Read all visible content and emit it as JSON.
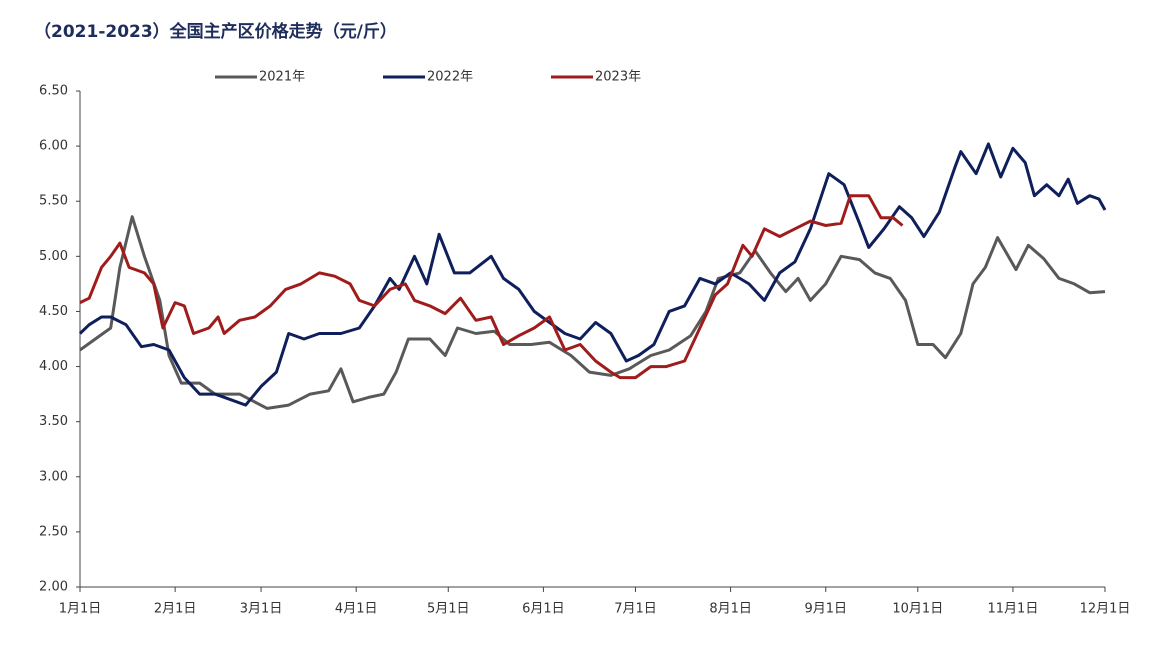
{
  "chart_data": {
    "type": "line",
    "title": "（2021-2023）全国主产区价格走势（元/斤）",
    "xlim": [
      0,
      334
    ],
    "xticks": [
      {
        "value": 0,
        "label": "1月1日"
      },
      {
        "value": 31,
        "label": "2月1日"
      },
      {
        "value": 59,
        "label": "3月1日"
      },
      {
        "value": 90,
        "label": "4月1日"
      },
      {
        "value": 120,
        "label": "5月1日"
      },
      {
        "value": 151,
        "label": "6月1日"
      },
      {
        "value": 181,
        "label": "7月1日"
      },
      {
        "value": 212,
        "label": "8月1日"
      },
      {
        "value": 243,
        "label": "9月1日"
      },
      {
        "value": 273,
        "label": "10月1日"
      },
      {
        "value": 304,
        "label": "11月1日"
      },
      {
        "value": 334,
        "label": "12月1日"
      }
    ],
    "ylim": [
      2,
      6.5
    ],
    "yticks": [
      {
        "value": 2,
        "label": "2.00"
      },
      {
        "value": 2.5,
        "label": "2.50"
      },
      {
        "value": 3,
        "label": "3.00"
      },
      {
        "value": 3.5,
        "label": "3.50"
      },
      {
        "value": 4,
        "label": "4.00"
      },
      {
        "value": 4.5,
        "label": "4.50"
      },
      {
        "value": 5,
        "label": "5.00"
      },
      {
        "value": 5.5,
        "label": "5.50"
      },
      {
        "value": 6,
        "label": "6.00"
      },
      {
        "value": 6.5,
        "label": "6.50"
      }
    ],
    "grid": false,
    "legend": "top",
    "series": [
      {
        "name": "2021年",
        "color": "#595959",
        "x": [
          0,
          5,
          10,
          13,
          17,
          21,
          26,
          29,
          33,
          39,
          44,
          52,
          61,
          68,
          75,
          81,
          85,
          89,
          94,
          99,
          103,
          107,
          114,
          119,
          123,
          129,
          135,
          140,
          147,
          153,
          160,
          166,
          173,
          179,
          186,
          192,
          199,
          204,
          208,
          215,
          220,
          225,
          230,
          234,
          238,
          243,
          248,
          254,
          259,
          264,
          269,
          273,
          278,
          282,
          287,
          291,
          295,
          299,
          305,
          309,
          314,
          319,
          324,
          329,
          334
        ],
        "values": [
          4.15,
          4.25,
          4.35,
          4.9,
          5.36,
          5.0,
          4.6,
          4.1,
          3.85,
          3.85,
          3.75,
          3.75,
          3.62,
          3.65,
          3.75,
          3.78,
          3.98,
          3.68,
          3.72,
          3.75,
          3.95,
          4.25,
          4.25,
          4.1,
          4.35,
          4.3,
          4.32,
          4.2,
          4.2,
          4.22,
          4.1,
          3.95,
          3.92,
          3.98,
          4.1,
          4.15,
          4.28,
          4.5,
          4.8,
          4.85,
          5.05,
          4.85,
          4.68,
          4.8,
          4.6,
          4.75,
          5.0,
          4.97,
          4.85,
          4.8,
          4.6,
          4.2,
          4.2,
          4.08,
          4.3,
          4.75,
          4.9,
          5.17,
          4.88,
          5.1,
          4.98,
          4.8,
          4.75,
          4.67,
          4.68
        ]
      },
      {
        "name": "2022年",
        "color": "#0f1f5c",
        "x": [
          0,
          3,
          7,
          10,
          15,
          20,
          24,
          29,
          34,
          39,
          44,
          49,
          54,
          59,
          64,
          68,
          73,
          78,
          85,
          91,
          96,
          101,
          104,
          109,
          113,
          117,
          122,
          127,
          134,
          138,
          143,
          148,
          153,
          158,
          163,
          168,
          173,
          178,
          182,
          187,
          192,
          197,
          202,
          207,
          212,
          218,
          223,
          228,
          233,
          238,
          244,
          249,
          254,
          257,
          262,
          267,
          271,
          275,
          280,
          285,
          287,
          292,
          296,
          300,
          304,
          308,
          311,
          315,
          319,
          322,
          325,
          329,
          332,
          334
        ],
        "values": [
          4.3,
          4.38,
          4.45,
          4.45,
          4.38,
          4.18,
          4.2,
          4.15,
          3.9,
          3.75,
          3.75,
          3.7,
          3.65,
          3.82,
          3.95,
          4.3,
          4.25,
          4.3,
          4.3,
          4.35,
          4.55,
          4.8,
          4.7,
          5.0,
          4.75,
          5.2,
          4.85,
          4.85,
          5.0,
          4.8,
          4.7,
          4.5,
          4.4,
          4.3,
          4.25,
          4.4,
          4.3,
          4.05,
          4.1,
          4.2,
          4.5,
          4.55,
          4.8,
          4.75,
          4.85,
          4.75,
          4.6,
          4.85,
          4.95,
          5.25,
          5.75,
          5.65,
          5.3,
          5.08,
          5.25,
          5.45,
          5.35,
          5.18,
          5.4,
          5.8,
          5.95,
          5.75,
          6.02,
          5.72,
          5.98,
          5.85,
          5.55,
          5.65,
          5.55,
          5.7,
          5.48,
          5.55,
          5.52,
          5.42
        ]
      },
      {
        "name": "2023年",
        "color": "#a01c1c",
        "x": [
          0,
          3,
          7,
          10,
          13,
          16,
          21,
          24,
          27,
          31,
          34,
          37,
          42,
          45,
          47,
          52,
          57,
          62,
          67,
          72,
          78,
          83,
          88,
          91,
          96,
          101,
          106,
          109,
          114,
          119,
          124,
          129,
          134,
          138,
          143,
          148,
          153,
          158,
          163,
          168,
          173,
          176,
          181,
          186,
          191,
          197,
          202,
          207,
          211,
          216,
          219,
          223,
          228,
          233,
          238,
          243,
          248,
          251,
          257,
          261,
          265,
          268
        ],
        "values": [
          4.58,
          4.62,
          4.9,
          5.0,
          5.12,
          4.9,
          4.85,
          4.75,
          4.35,
          4.58,
          4.55,
          4.3,
          4.35,
          4.45,
          4.3,
          4.42,
          4.45,
          4.55,
          4.7,
          4.75,
          4.85,
          4.82,
          4.75,
          4.6,
          4.55,
          4.7,
          4.75,
          4.6,
          4.55,
          4.48,
          4.62,
          4.42,
          4.45,
          4.2,
          4.28,
          4.35,
          4.45,
          4.15,
          4.2,
          4.05,
          3.95,
          3.9,
          3.9,
          4.0,
          4.0,
          4.05,
          4.35,
          4.65,
          4.75,
          5.1,
          5.0,
          5.25,
          5.18,
          5.25,
          5.32,
          5.28,
          5.3,
          5.55,
          5.55,
          5.35,
          5.35,
          5.28
        ]
      }
    ]
  }
}
